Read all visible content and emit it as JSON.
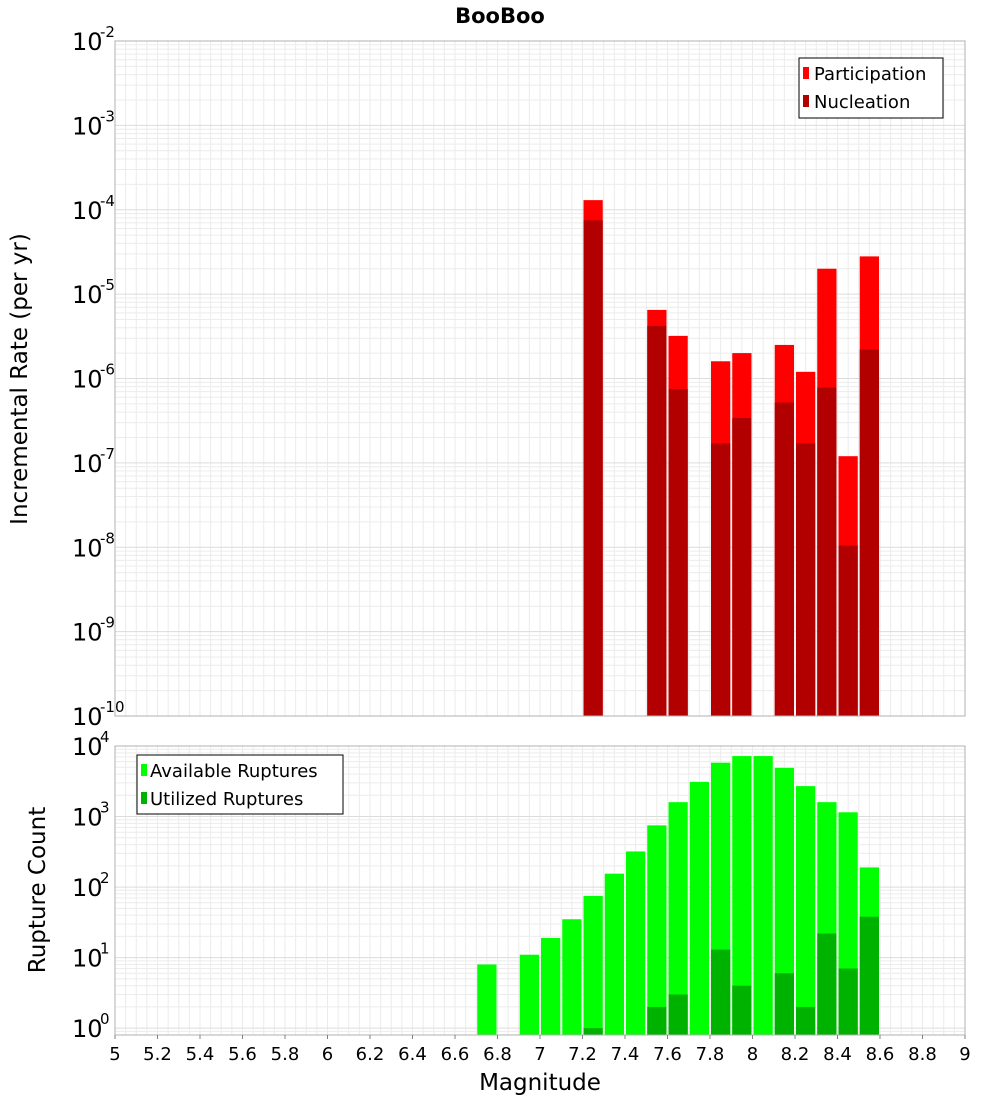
{
  "title": "BooBoo",
  "chart_data": [
    {
      "type": "bar",
      "ylabel": "Incremental Rate (per yr)",
      "yscale": "log",
      "ylim": [
        1e-10,
        0.01
      ],
      "ytick_exponents": [
        -10,
        -9,
        -8,
        -7,
        -6,
        -5,
        -4,
        -3,
        -2
      ],
      "xlim": [
        5,
        9
      ],
      "bin_width": 0.1,
      "grid": true,
      "legend_position": "top-right",
      "series": [
        {
          "name": "Participation",
          "color": "#ff0000",
          "x": [
            7.25,
            7.55,
            7.65,
            7.85,
            7.95,
            8.15,
            8.25,
            8.35,
            8.45,
            8.55
          ],
          "values": [
            0.00013,
            6.5e-06,
            3.2e-06,
            1.6e-06,
            2e-06,
            2.5e-06,
            1.2e-06,
            2e-05,
            1.2e-07,
            2.8e-05
          ]
        },
        {
          "name": "Nucleation",
          "color": "#b20000",
          "x": [
            7.25,
            7.55,
            7.65,
            7.85,
            7.95,
            8.15,
            8.25,
            8.35,
            8.45,
            8.55
          ],
          "values": [
            7.5e-05,
            4.2e-06,
            7.5e-07,
            1.7e-07,
            3.4e-07,
            5.2e-07,
            1.7e-07,
            7.8e-07,
            1.05e-08,
            2.2e-06
          ]
        }
      ]
    },
    {
      "type": "bar",
      "xlabel": "Magnitude",
      "ylabel": "Rupture Count",
      "yscale": "log",
      "ylim": [
        0.8,
        10000
      ],
      "ytick_exponents": [
        0,
        1,
        2,
        3,
        4
      ],
      "xlim": [
        5,
        9
      ],
      "xticks": [
        "5",
        "5.2",
        "5.4",
        "5.6",
        "5.8",
        "6",
        "6.2",
        "6.4",
        "6.6",
        "6.8",
        "7",
        "7.2",
        "7.4",
        "7.6",
        "7.8",
        "8",
        "8.2",
        "8.4",
        "8.6",
        "8.8",
        "9"
      ],
      "bin_width": 0.1,
      "grid": true,
      "legend_position": "top-left",
      "series": [
        {
          "name": "Available Ruptures",
          "color": "#00ff00",
          "x": [
            6.75,
            6.95,
            7.05,
            7.15,
            7.25,
            7.35,
            7.45,
            7.55,
            7.65,
            7.75,
            7.85,
            7.95,
            8.05,
            8.15,
            8.25,
            8.35,
            8.45,
            8.55
          ],
          "values": [
            8,
            11,
            19,
            35,
            75,
            155,
            320,
            750,
            1600,
            3100,
            5800,
            7200,
            7200,
            4900,
            2700,
            1600,
            1150,
            190
          ]
        },
        {
          "name": "Utilized Ruptures",
          "color": "#00b200",
          "x": [
            7.25,
            7.55,
            7.65,
            7.85,
            7.95,
            8.15,
            8.25,
            8.35,
            8.45,
            8.55
          ],
          "values": [
            1,
            2,
            3,
            13,
            4,
            6,
            2,
            22,
            7,
            38
          ]
        }
      ]
    }
  ]
}
